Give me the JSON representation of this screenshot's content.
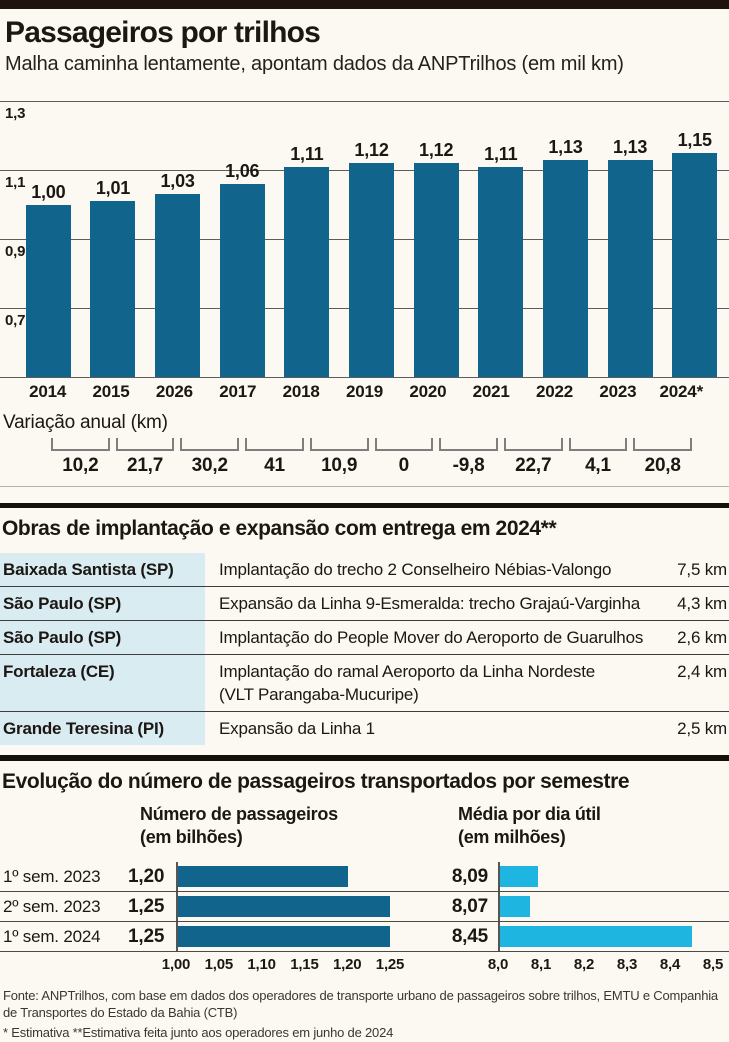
{
  "header": {
    "title": "Passageiros por trilhos",
    "subtitle": "Malha caminha lentamente, apontam dados da ANPTrilhos (em mil km)"
  },
  "chart_data": [
    {
      "type": "bar",
      "title": "Passageiros por trilhos",
      "subtitle": "Malha caminha lentamente, apontam dados da ANPTrilhos (em mil km)",
      "categories": [
        "2014",
        "2015",
        "2026",
        "2017",
        "2018",
        "2019",
        "2020",
        "2021",
        "2022",
        "2023",
        "2024*"
      ],
      "values": [
        1.0,
        1.01,
        1.03,
        1.06,
        1.11,
        1.12,
        1.12,
        1.11,
        1.13,
        1.13,
        1.15
      ],
      "value_labels": [
        "1,00",
        "1,01",
        "1,03",
        "1,06",
        "1,11",
        "1,12",
        "1,12",
        "1,11",
        "1,13",
        "1,13",
        "1,15"
      ],
      "ylim": [
        0.5,
        1.3
      ],
      "yticks": [
        "1,3",
        "1,1",
        "0,9",
        "0,7"
      ],
      "grid": true,
      "bar_color": "#11658C",
      "annotation_label": "Variação anual (km)",
      "annotation_values": [
        "10,2",
        "21,7",
        "30,2",
        "41",
        "10,9",
        "0",
        "-9,8",
        "22,7",
        "4,1",
        "20,8"
      ]
    },
    {
      "type": "bar",
      "orientation": "horizontal",
      "title": "Evolução do número de passageiros transportados por semestre",
      "categories": [
        "1º sem. 2023",
        "2º sem. 2023",
        "1º sem. 2024"
      ],
      "series": [
        {
          "name": "Número de passageiros (em bilhões)",
          "values": [
            1.2,
            1.25,
            1.25
          ],
          "value_labels": [
            "1,20",
            "1,25",
            "1,25"
          ],
          "xlim": [
            1.0,
            1.25
          ],
          "ticks": [
            "1,00",
            "1,05",
            "1,10",
            "1,15",
            "1,20",
            "1,25"
          ],
          "bar_color": "#11658C"
        },
        {
          "name": "Média por dia útil (em milhões)",
          "values": [
            8.09,
            8.07,
            8.45
          ],
          "value_labels": [
            "8,09",
            "8,07",
            "8,45"
          ],
          "xlim": [
            8.0,
            8.5
          ],
          "ticks": [
            "8,0",
            "8,1",
            "8,2",
            "8,3",
            "8,4",
            "8,5"
          ],
          "bar_color": "#1EB6E0"
        }
      ]
    }
  ],
  "obras": {
    "heading": "Obras de implantação e expansão com entrega em 2024**",
    "rows": [
      {
        "location": "Baixada Santista (SP)",
        "description": "Implantação do trecho 2 Conselheiro Nébias-Valongo",
        "extent": "7,5 km"
      },
      {
        "location": "São Paulo (SP)",
        "description": "Expansão da Linha 9-Esmeralda: trecho Grajaú-Varginha",
        "extent": "4,3 km"
      },
      {
        "location": "São Paulo (SP)",
        "description": "Implantação do People Mover do Aeroporto de Guarulhos",
        "extent": "2,6 km"
      },
      {
        "location": "Fortaleza (CE)",
        "description": "Implantação do ramal Aeroporto da Linha Nordeste",
        "description2": "(VLT Parangaba-Mucuripe)",
        "extent": "2,4 km"
      },
      {
        "location": "Grande Teresina (PI)",
        "description": "Expansão da Linha 1",
        "extent": "2,5 km"
      }
    ]
  },
  "evolucao": {
    "heading": "Evolução do número de passageiros transportados por semestre",
    "col1_header_line1": "Número de passageiros",
    "col1_header_line2": "(em bilhões)",
    "col2_header_line1": "Média por dia útil",
    "col2_header_line2": "(em milhões)"
  },
  "footer": {
    "source": "Fonte: ANPTrilhos, com base em dados dos operadores de transporte urbano de passageiros sobre trilhos, EMTU e Companhia de Transportes do Estado da Bahia (CTB)",
    "notes": "* Estimativa  **Estimativa feita junto aos operadores em junho de 2024"
  },
  "colors": {
    "bar_teal": "#11658C",
    "bar_cyan": "#1EB6E0",
    "table_cell_bg": "#D9ECF2",
    "rule_black": "#15100A",
    "background": "#FBF9F2"
  }
}
